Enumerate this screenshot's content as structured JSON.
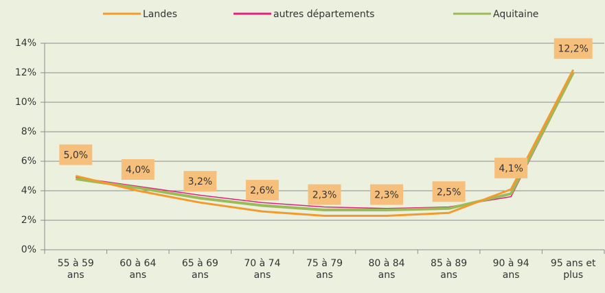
{
  "chart_data": {
    "type": "line",
    "categories": [
      "55 à 59 ans",
      "60 à 64 ans",
      "65 à 69 ans",
      "70 à 74 ans",
      "75 à 79 ans",
      "80 à 84 ans",
      "85 à 89 ans",
      "90 à 94 ans",
      "95 ans et plus"
    ],
    "series": [
      {
        "name": "Landes",
        "color": "#f39a2e",
        "values": [
          5.0,
          4.0,
          3.2,
          2.6,
          2.3,
          2.3,
          2.5,
          4.1,
          12.2
        ],
        "value_labels": [
          "5,0%",
          "4,0%",
          "3,2%",
          "2,6%",
          "2,3%",
          "2,3%",
          "2,5%",
          "4,1%",
          "12,2%"
        ]
      },
      {
        "name": "autres départements",
        "color": "#e0207f",
        "values": [
          4.9,
          4.3,
          3.7,
          3.2,
          2.9,
          2.8,
          2.9,
          3.6,
          11.9
        ]
      },
      {
        "name": "Aquitaine",
        "color": "#9bbb59",
        "values": [
          4.8,
          4.2,
          3.5,
          3.0,
          2.7,
          2.7,
          2.8,
          3.8,
          12.0
        ]
      }
    ],
    "ylim": [
      0,
      14
    ],
    "yticks": [
      {
        "value": 0,
        "label": "0%"
      },
      {
        "value": 2,
        "label": "2%"
      },
      {
        "value": 4,
        "label": "4%"
      },
      {
        "value": 6,
        "label": "6%"
      },
      {
        "value": 8,
        "label": "8%"
      },
      {
        "value": 10,
        "label": "10%"
      },
      {
        "value": 12,
        "label": "12%"
      },
      {
        "value": 14,
        "label": "14%"
      }
    ],
    "grid": true,
    "legend": "top"
  }
}
